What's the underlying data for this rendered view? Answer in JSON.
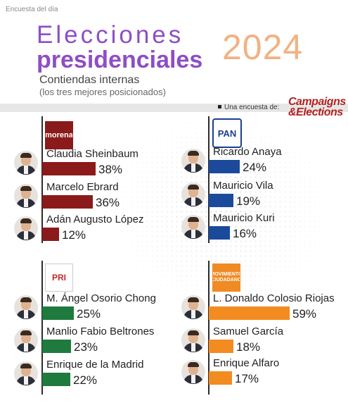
{
  "header": {
    "kicker": "Encuesta del día",
    "title_line1": "Elecciones",
    "title_line2": "presidenciales",
    "year": "2024",
    "subtitle": "Contiendas internas",
    "subtitle_note": "(los tres mejores posicionados)",
    "byline": "Una encuesta de:",
    "brand_line1": "Campaigns",
    "brand_line2": "&Elections"
  },
  "party_labels": {
    "morena": "morena",
    "pan": "PAN",
    "pri": "PRI",
    "mc_line1": "MOVIMIENTO",
    "mc_line2": "CIUDADANO"
  },
  "colors": {
    "morena": "#8b1a1a",
    "pan": "#1b4a9b",
    "pri": "#1f7a3e",
    "mc": "#f28b20",
    "title": "#8e4ec6",
    "year": "#f2b183"
  },
  "chart_data": [
    {
      "type": "bar",
      "party": "morena",
      "categories": [
        "Claudia Sheinbaum",
        "Marcelo Ebrard",
        "Adán Augusto López"
      ],
      "values": [
        38,
        36,
        12
      ],
      "labels": [
        "38%",
        "36%",
        "12%"
      ]
    },
    {
      "type": "bar",
      "party": "pan",
      "categories": [
        "Ricardo Anaya",
        "Mauricio Vila",
        "Mauricio Kuri"
      ],
      "values": [
        24,
        19,
        16
      ],
      "labels": [
        "24%",
        "19%",
        "16%"
      ]
    },
    {
      "type": "bar",
      "party": "pri",
      "categories": [
        "M. Ángel Osorio Chong",
        "Manlio Fabio Beltrones",
        "Enrique de la Madrid"
      ],
      "values": [
        25,
        23,
        22
      ],
      "labels": [
        "25%",
        "23%",
        "22%"
      ]
    },
    {
      "type": "bar",
      "party": "mc",
      "categories": [
        "L. Donaldo Colosio Riojas",
        "Samuel García",
        "Enrique Alfaro"
      ],
      "values": [
        59,
        18,
        17
      ],
      "labels": [
        "59%",
        "18%",
        "17%"
      ]
    }
  ]
}
